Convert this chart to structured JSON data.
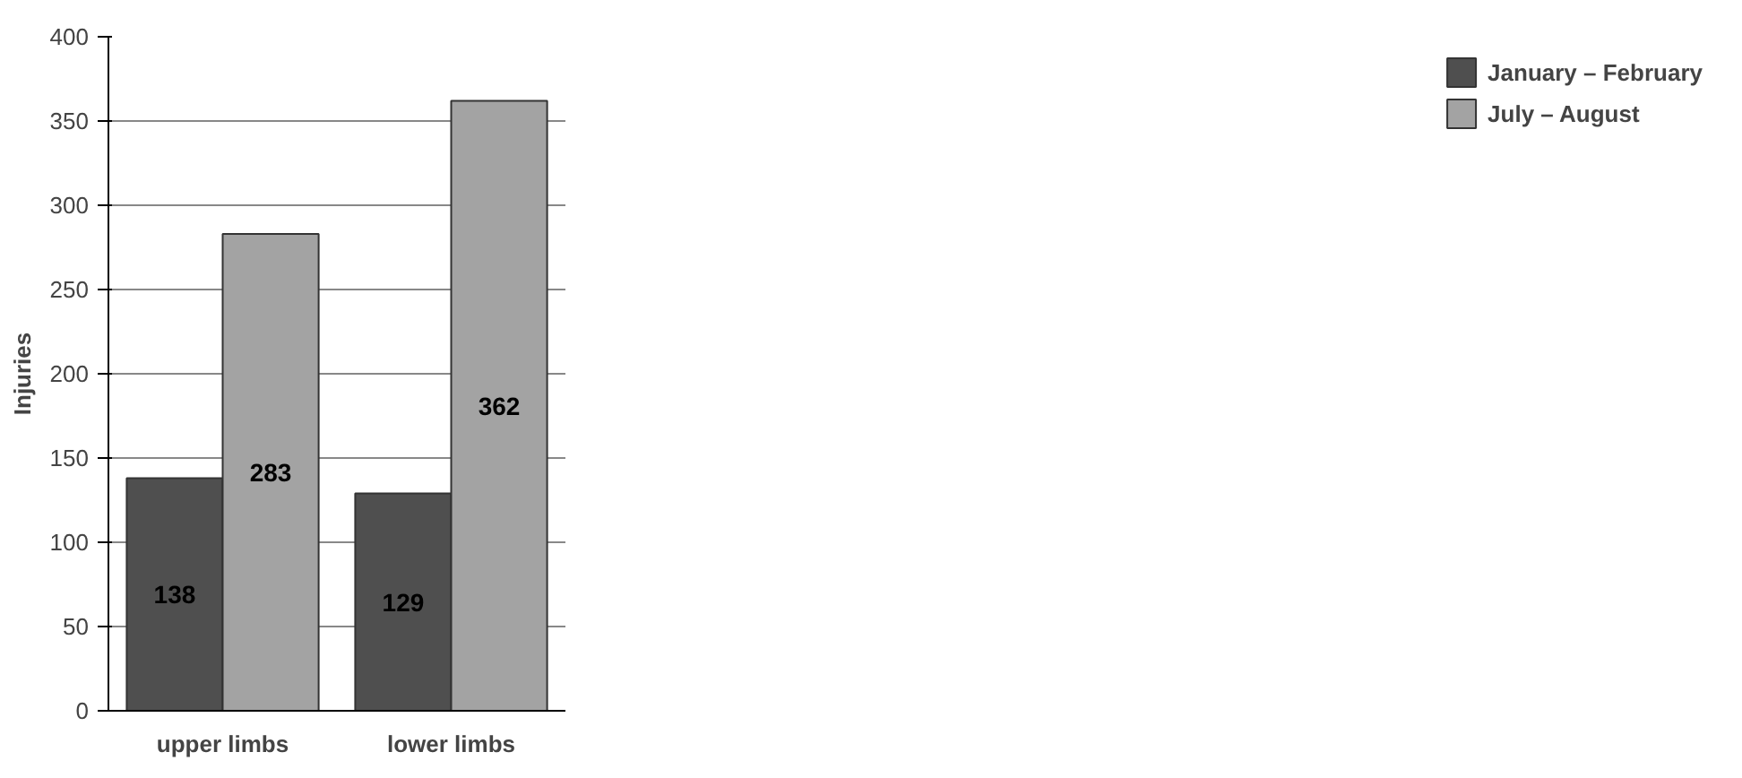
{
  "chart_data": {
    "type": "bar",
    "ylabel": "Injuries",
    "categories": [
      "upper limbs",
      "lower limbs"
    ],
    "series": [
      {
        "name": "January – February",
        "color": "#4f4f4f",
        "values": [
          138,
          129
        ]
      },
      {
        "name": "July – August",
        "color": "#a3a3a3",
        "values": [
          283,
          362
        ]
      }
    ],
    "ylim": [
      0,
      400
    ],
    "yticks": [
      0,
      50,
      100,
      150,
      200,
      250,
      300,
      350,
      400
    ],
    "grid": "y",
    "legend": "right",
    "data_labels": true
  }
}
